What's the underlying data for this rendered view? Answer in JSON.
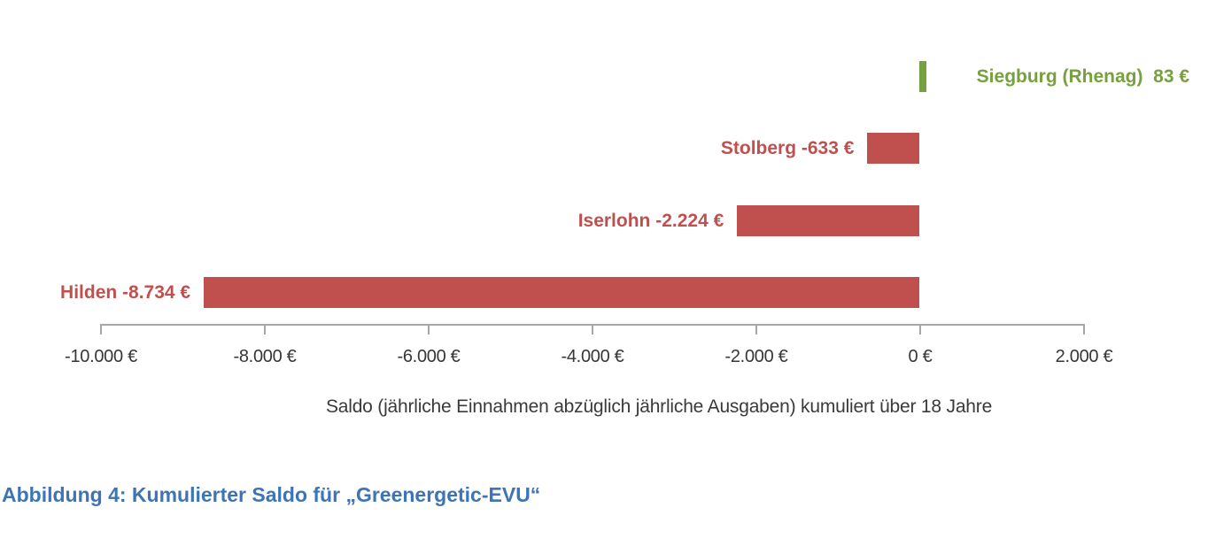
{
  "chart_data": {
    "type": "bar",
    "orientation": "horizontal",
    "title": "",
    "categories": [
      "Siegburg (Rhenag)",
      "Stolberg",
      "Iserlohn",
      "Hilden"
    ],
    "values": [
      83,
      -633,
      -2224,
      -8734
    ],
    "bar_labels": [
      "Siegburg (Rhenag)  83 €",
      "Stolberg -633 €",
      "Iserlohn -2.224 €",
      "Hilden -8.734 €"
    ],
    "xlabel": "Saldo (jährliche Einnahmen abzüglich jährliche Ausgaben) kumuliert über 18 Jahre",
    "ylabel": "",
    "xlim": [
      -10000,
      2000
    ],
    "x_tick_values": [
      -10000,
      -8000,
      -6000,
      -4000,
      -2000,
      0,
      2000
    ],
    "x_tick_labels": [
      "-10.000 €",
      "-8.000 €",
      "-6.000 €",
      "-4.000 €",
      "-2.000 €",
      "0 €",
      "2.000 €"
    ],
    "grid": false,
    "legend": "none",
    "positive_color": "#77a03e",
    "negative_color": "#c0504d"
  },
  "caption": "Abbildung 4: Kumulierter Saldo für „Greenergetic-EVU“",
  "colors": {
    "caption_blue": "#3e74b5",
    "axis_gray": "#a6a6a6",
    "tick_text": "#363636"
  }
}
